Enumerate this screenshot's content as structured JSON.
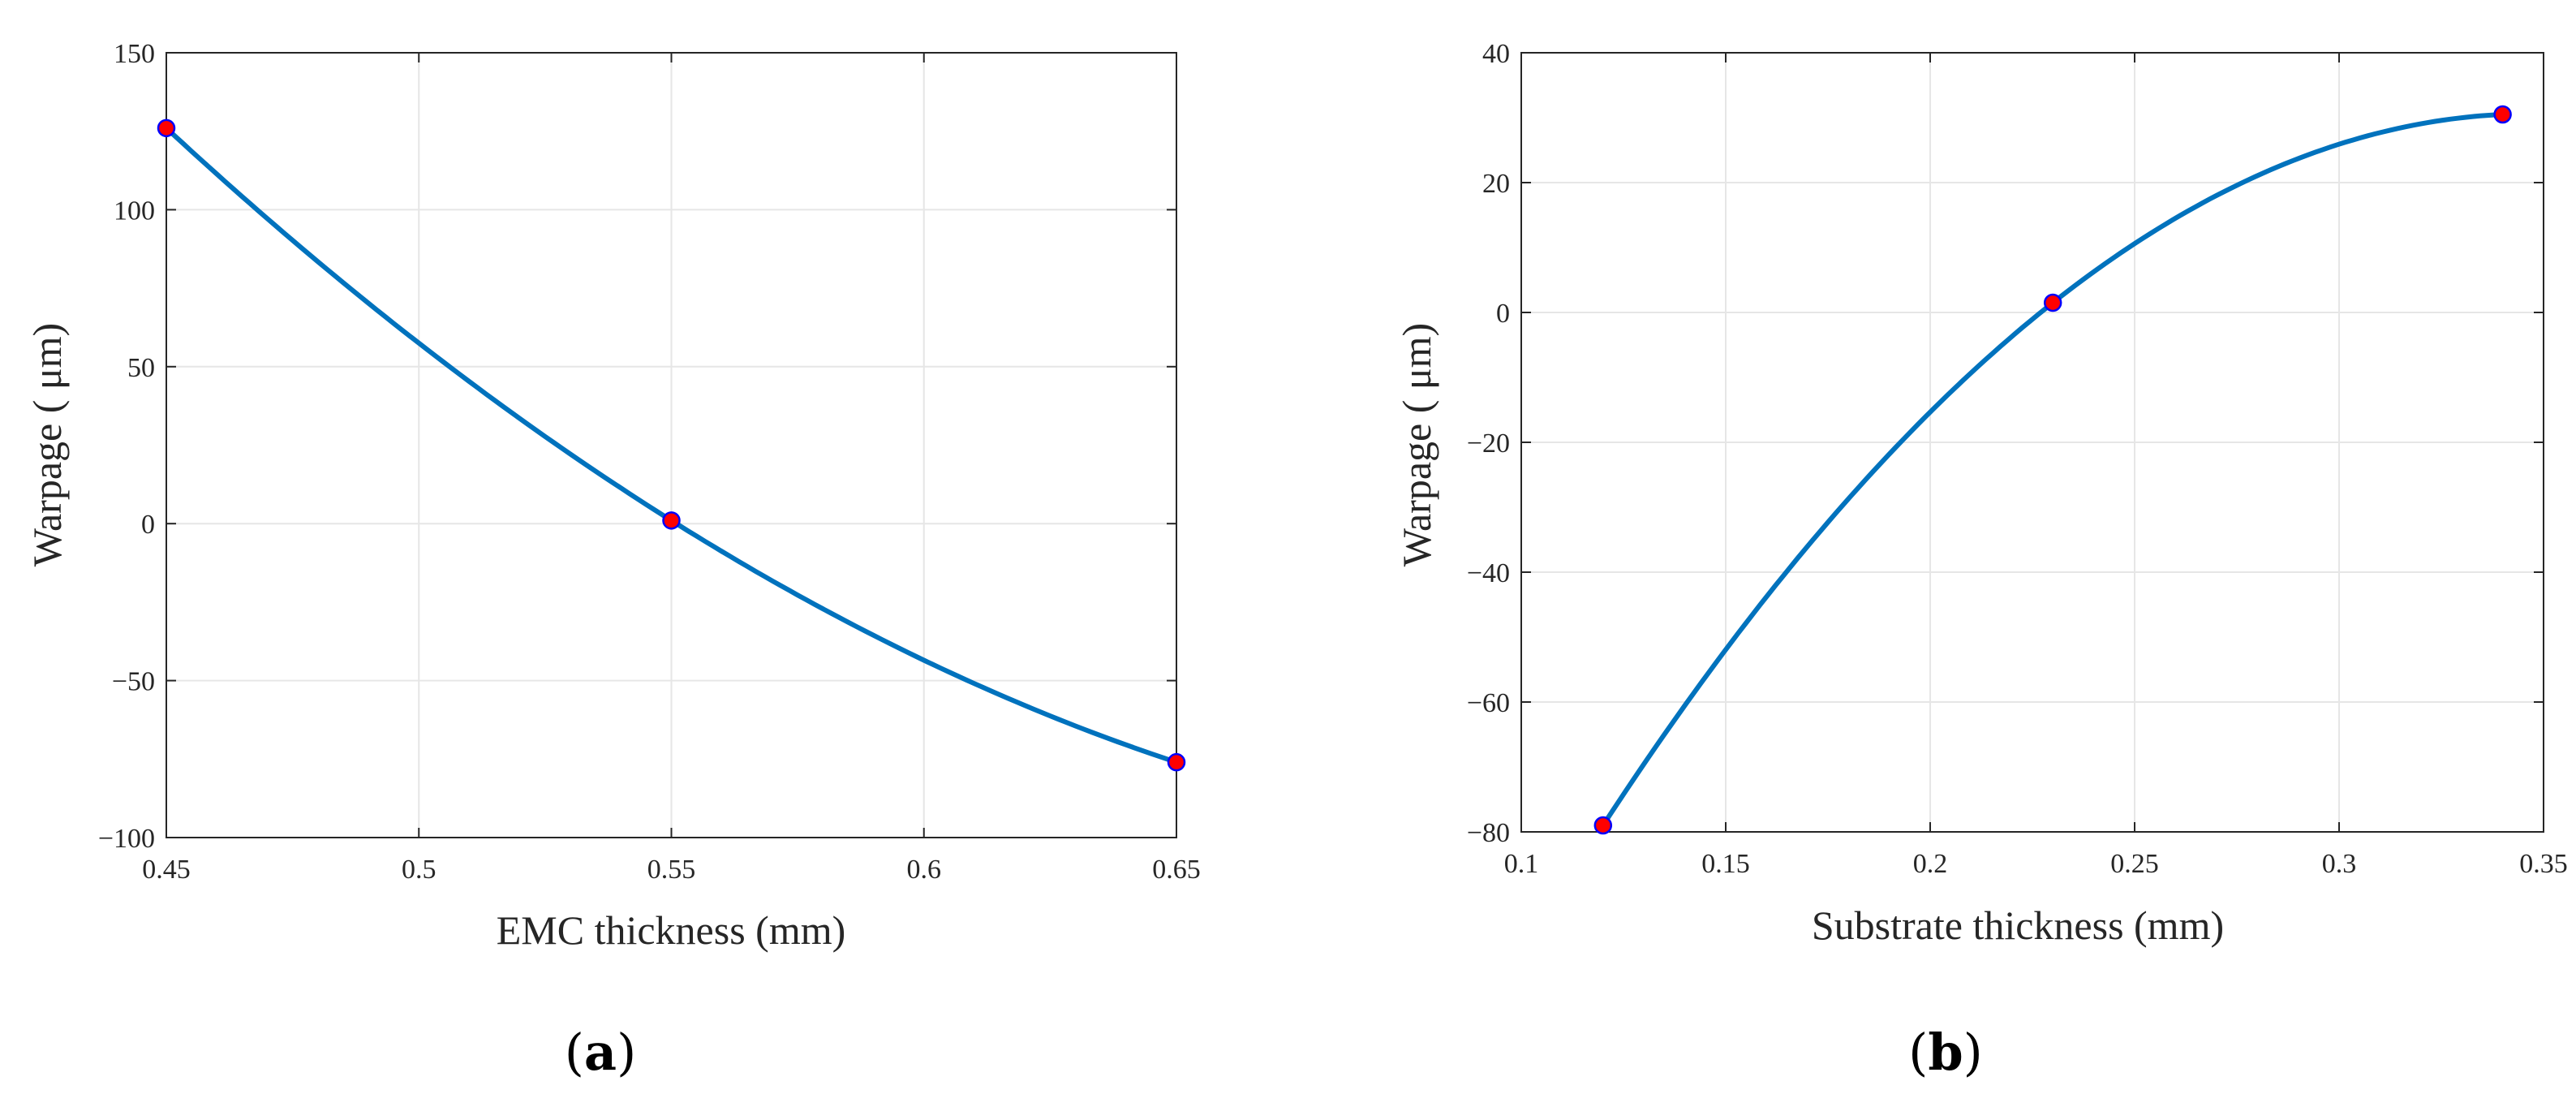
{
  "chart_data": [
    {
      "type": "line",
      "panel_label": "a",
      "xlabel": "EMC thickness (mm)",
      "ylabel": "Warpage ( μm)",
      "xlim": [
        0.45,
        0.65
      ],
      "ylim": [
        -100,
        150
      ],
      "xticks": [
        0.45,
        0.5,
        0.55,
        0.6,
        0.65
      ],
      "xtick_labels": [
        "0.45",
        "0.5",
        "0.55",
        "0.6",
        "0.65"
      ],
      "yticks": [
        -100,
        -50,
        0,
        50,
        100,
        150
      ],
      "ytick_labels": [
        "−100",
        "−50",
        "0",
        "50",
        "100",
        "150"
      ],
      "grid": true,
      "series": [
        {
          "name": "fit",
          "style": "line",
          "x": [
            0.45,
            0.55,
            0.65
          ],
          "y": [
            126,
            1,
            -76
          ]
        },
        {
          "name": "samples",
          "style": "markers",
          "x": [
            0.45,
            0.55,
            0.65
          ],
          "y": [
            126,
            1,
            -76
          ]
        }
      ]
    },
    {
      "type": "line",
      "panel_label": "b",
      "xlabel": "Substrate thickness (mm)",
      "ylabel": "Warpage ( μm)",
      "xlim": [
        0.1,
        0.35
      ],
      "ylim": [
        -80,
        40
      ],
      "xticks": [
        0.1,
        0.15,
        0.2,
        0.25,
        0.3,
        0.35
      ],
      "xtick_labels": [
        "0.1",
        "0.15",
        "0.2",
        "0.25",
        "0.3",
        "0.35"
      ],
      "yticks": [
        -80,
        -60,
        -40,
        -20,
        0,
        20,
        40
      ],
      "ytick_labels": [
        "−80",
        "−60",
        "−40",
        "−20",
        "0",
        "20",
        "40"
      ],
      "grid": true,
      "series": [
        {
          "name": "fit",
          "style": "line",
          "x": [
            0.12,
            0.23,
            0.34
          ],
          "y": [
            -79,
            1.5,
            30.5
          ]
        },
        {
          "name": "samples",
          "style": "markers",
          "x": [
            0.12,
            0.23,
            0.34
          ],
          "y": [
            -79,
            1.5,
            30.5
          ]
        }
      ]
    }
  ],
  "colors": {
    "line": "#0072BD",
    "marker_fill": "#FF0000",
    "marker_edge": "#0000FF"
  },
  "panel_open": "(",
  "panel_close": ")"
}
